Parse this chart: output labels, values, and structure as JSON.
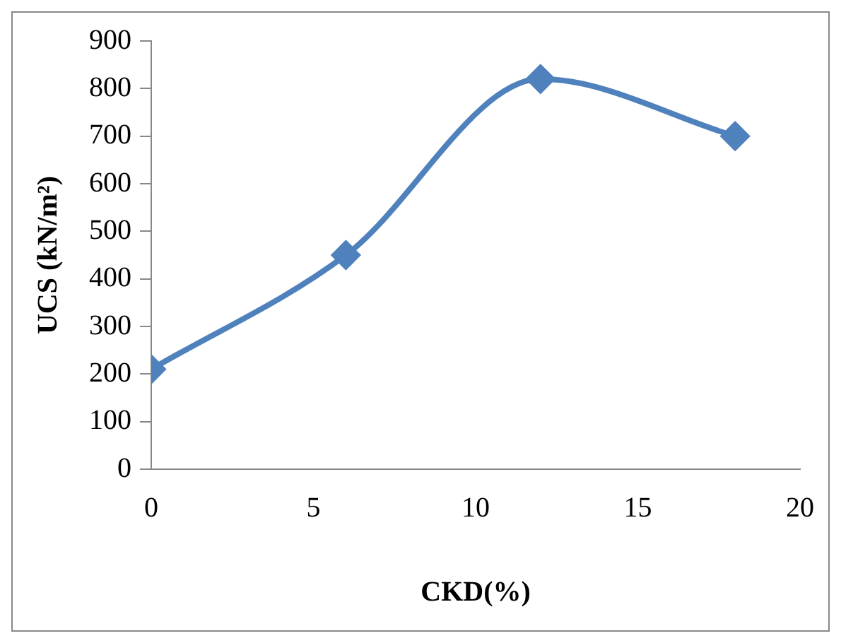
{
  "chart_data": {
    "type": "line",
    "xlabel": "CKD(%)",
    "ylabel": "UCS (kN/m²)",
    "x": [
      0,
      6,
      12,
      18
    ],
    "series": [
      {
        "color": "#4f81bd",
        "values": [
          210,
          450,
          820,
          700
        ]
      }
    ],
    "xlim": [
      0,
      20
    ],
    "xticks": [
      0,
      5,
      10,
      15,
      20
    ],
    "ylim": [
      0,
      900
    ],
    "yticks": [
      0,
      100,
      200,
      300,
      400,
      500,
      600,
      700,
      800,
      900
    ],
    "grid": false,
    "legend": false,
    "marker": "diamond",
    "line_style": "solid"
  }
}
